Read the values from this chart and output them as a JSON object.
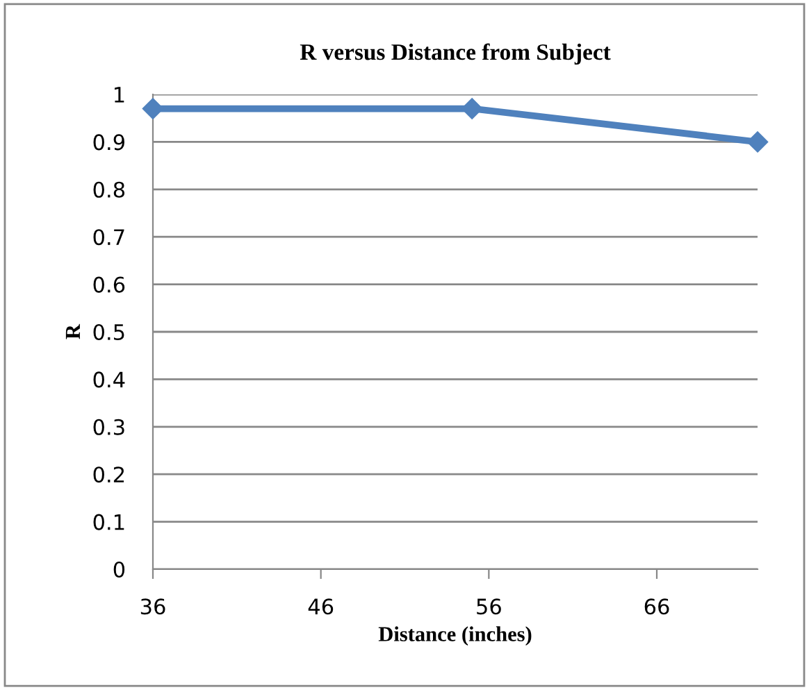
{
  "chart_data": {
    "type": "line",
    "title": "R versus Distance from Subject",
    "xlabel": "Distance (inches)",
    "ylabel": "R",
    "x": [
      36,
      55,
      72
    ],
    "series": [
      {
        "color": "#4f81bd",
        "values": [
          0.97,
          0.97,
          0.9
        ]
      }
    ],
    "xlim": [
      36,
      72
    ],
    "xticks": [
      36,
      46,
      56,
      66
    ],
    "ylim": [
      0,
      1
    ],
    "yticks": [
      0,
      0.1,
      0.2,
      0.3,
      0.4,
      0.5,
      0.6,
      0.7,
      0.8,
      0.9,
      1
    ],
    "grid": "y",
    "marker": "diamond",
    "line_style": "solid"
  }
}
